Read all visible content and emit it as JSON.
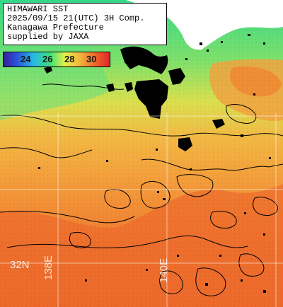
{
  "info": {
    "title": "HIMAWARI SST",
    "datetime": "2025/09/15 21(UTC) 3H Comp.",
    "region": "Kanagawa Prefecture",
    "credit": "supplied by JAXA"
  },
  "legend": {
    "ticks": [
      "24",
      "26",
      "28",
      "30"
    ],
    "colors": [
      "#3b1f96",
      "#2a4fd8",
      "#27b8e6",
      "#3ee07a",
      "#e9f04a",
      "#f3b43d",
      "#ef6a2a",
      "#e2232e"
    ]
  },
  "grid": {
    "lat_label": "32N",
    "lon_labels": [
      "138E",
      "140E"
    ]
  },
  "colors": {
    "land": "#ffffff",
    "cloud": "#000000",
    "cold_coast": "#4fe07a",
    "warm_sea": "#f29a3c",
    "hot_sea": "#ec6c2a"
  }
}
